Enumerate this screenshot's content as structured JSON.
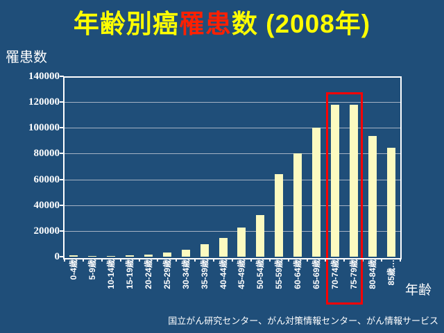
{
  "slide": {
    "title": {
      "pre": "年齢別癌",
      "highlight": "罹患",
      "post": "数 (2008年)"
    },
    "source": "国立がん研究センター、がん対策情報センター、がん情報サービス"
  },
  "chart_data": {
    "type": "bar",
    "title": "年齢別癌罹患数 (2008年)",
    "xlabel": "年齢",
    "ylabel": "罹患数",
    "categories": [
      "0-4歳",
      "5-9歳",
      "10-14歳",
      "15-19歳",
      "20-24歳",
      "25-29歳",
      "30-34歳",
      "35-39歳",
      "40-44歳",
      "45-49歳",
      "50-54歳",
      "55-59歳",
      "60-64歳",
      "65-69歳",
      "70-74歳",
      "75-79歳",
      "80-84歳",
      "85歳…"
    ],
    "values": [
      1200,
      500,
      500,
      900,
      1700,
      3100,
      5400,
      9800,
      14700,
      22400,
      32500,
      64000,
      80000,
      100000,
      118000,
      118000,
      93500,
      84500
    ],
    "ylim": [
      0,
      140000
    ],
    "ytick_interval": 20000,
    "grid": true,
    "legend": false,
    "bar_color": "#FCFAC0",
    "background_color": "#1F4E79",
    "gridline_color": "#A6B3C4",
    "highlight": {
      "categories": [
        "70-74歳",
        "75-79歳"
      ],
      "from_index": 14,
      "to_index": 15,
      "box_color": "#FF0000"
    }
  },
  "colors": {
    "title_yellow": "#FFFF00",
    "title_red": "#FF2000",
    "text": "#FFFFFF"
  }
}
